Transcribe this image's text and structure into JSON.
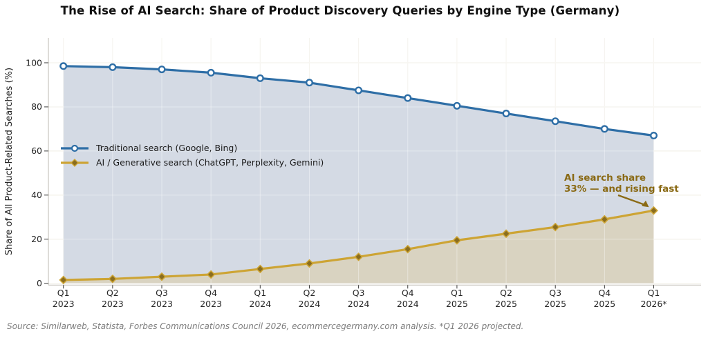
{
  "title": "The Rise of AI Search: Share of Product Discovery Queries by Engine Type (Germany)",
  "chart_data": {
    "type": "line",
    "categories": [
      "Q1 2023",
      "Q2 2023",
      "Q3 2023",
      "Q4 2023",
      "Q1 2024",
      "Q2 2024",
      "Q3 2024",
      "Q4 2024",
      "Q1 2025",
      "Q2 2025",
      "Q3 2025",
      "Q4 2025",
      "Q1 2026*"
    ],
    "series": [
      {
        "name": "Traditional search (Google, Bing)",
        "marker": "circle",
        "color": "#2e6ea6",
        "fill_color": "#d4dae4",
        "values": [
          98.5,
          98,
          97,
          95.5,
          93,
          91,
          87.5,
          84,
          80.5,
          77,
          73.5,
          70,
          67
        ]
      },
      {
        "name": "AI / Generative search (ChatGPT, Perplexity, Gemini)",
        "marker": "diamond",
        "color": "#cda434",
        "marker_fill": "#8a6d1f",
        "fill_color": "#d9d3c1",
        "values": [
          1.5,
          2,
          3,
          4,
          6.5,
          9,
          12,
          15.5,
          19.5,
          22.5,
          25.5,
          29,
          33
        ]
      }
    ],
    "title": "The Rise of AI Search: Share of Product Discovery Queries by Engine Type (Germany)",
    "xlabel": "",
    "ylabel": "Share of All Product-Related Searches (%)",
    "ylim": [
      0,
      105
    ],
    "yticks": [
      0,
      20,
      40,
      60,
      80,
      100
    ],
    "grid": true,
    "legend_position": "upper-left-inside"
  },
  "annotation": {
    "text": "AI search share\n33% — and rising fast",
    "color": "#8a6a15"
  },
  "source": "Source: Similarweb, Statista, Forbes Communications Council 2026, ecommercegermany.com analysis. *Q1 2026 projected."
}
